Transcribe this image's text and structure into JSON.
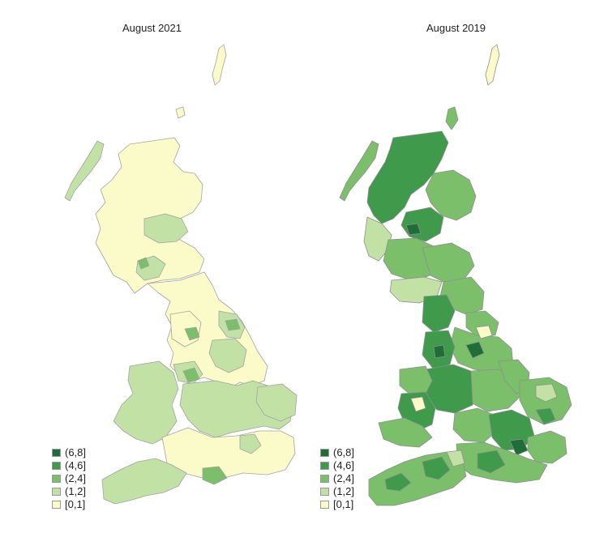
{
  "maps": [
    {
      "title": "August 2021",
      "legend": [
        {
          "label": "(6,8]",
          "color": "#1f6e37"
        },
        {
          "label": "(4,6]",
          "color": "#3f9a4c"
        },
        {
          "label": "(2,4]",
          "color": "#7bbf6a"
        },
        {
          "label": "(1,2]",
          "color": "#c2e1a4"
        },
        {
          "label": "[0,1]",
          "color": "#fbfac9"
        }
      ]
    },
    {
      "title": "August 2019",
      "legend": [
        {
          "label": "(6,8]",
          "color": "#1f6e37"
        },
        {
          "label": "(4,6]",
          "color": "#3f9a4c"
        },
        {
          "label": "(2,4]",
          "color": "#7bbf6a"
        },
        {
          "label": "(1,2]",
          "color": "#c2e1a4"
        },
        {
          "label": "[0,1]",
          "color": "#fbfac9"
        }
      ]
    }
  ],
  "colors": {
    "boundary": "#9e9e9e",
    "class_6_8": "#1f6e37",
    "class_4_6": "#3f9a4c",
    "class_2_4": "#7bbf6a",
    "class_1_2": "#c2e1a4",
    "class_0_1": "#fbfac9"
  }
}
